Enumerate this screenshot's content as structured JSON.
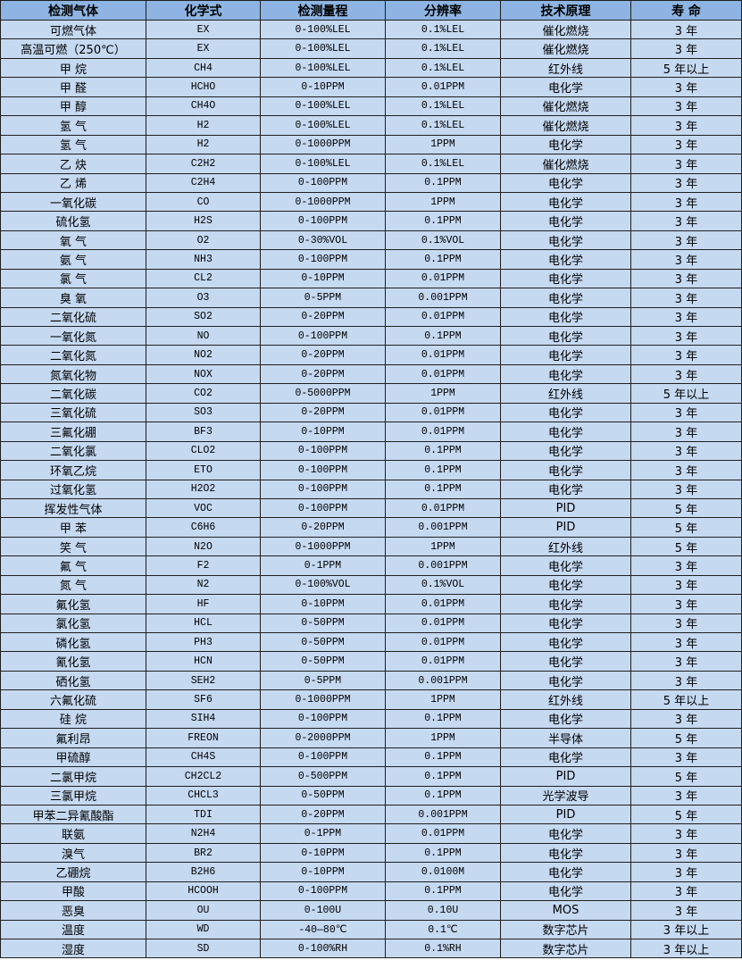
{
  "table": {
    "headers": [
      "检测气体",
      "化学式",
      "检测量程",
      "分辨率",
      "技术原理",
      "寿 命"
    ],
    "rows": [
      [
        "可燃气体",
        "EX",
        "0-100%LEL",
        "0.1%LEL",
        "催化燃烧",
        "3 年"
      ],
      [
        "高温可燃（250℃）",
        "EX",
        "0-100%LEL",
        "0.1%LEL",
        "催化燃烧",
        "3 年"
      ],
      [
        "甲 烷",
        "CH4",
        "0-100%LEL",
        "0.1%LEL",
        "红外线",
        "5 年以上"
      ],
      [
        "甲 醛",
        "HCHO",
        "0-10PPM",
        "0.01PPM",
        "电化学",
        "3 年"
      ],
      [
        "甲 醇",
        "CH4O",
        "0-100%LEL",
        "0.1%LEL",
        "催化燃烧",
        "3 年"
      ],
      [
        "氢 气",
        "H2",
        "0-100%LEL",
        "0.1%LEL",
        "催化燃烧",
        "3 年"
      ],
      [
        "氢 气",
        "H2",
        "0-1000PPM",
        "1PPM",
        "电化学",
        "3 年"
      ],
      [
        "乙 炔",
        "C2H2",
        "0-100%LEL",
        "0.1%LEL",
        "催化燃烧",
        "3 年"
      ],
      [
        "乙 烯",
        "C2H4",
        "0-100PPM",
        "0.1PPM",
        "电化学",
        "3 年"
      ],
      [
        "一氧化碳",
        "CO",
        "0-1000PPM",
        "1PPM",
        "电化学",
        "3 年"
      ],
      [
        "硫化氢",
        "H2S",
        "0-100PPM",
        "0.1PPM",
        "电化学",
        "3 年"
      ],
      [
        "氧 气",
        "O2",
        "0-30%VOL",
        "0.1%VOL",
        "电化学",
        "3 年"
      ],
      [
        "氨 气",
        "NH3",
        "0-100PPM",
        "0.1PPM",
        "电化学",
        "3 年"
      ],
      [
        "氯 气",
        "CL2",
        "0-10PPM",
        "0.01PPM",
        "电化学",
        "3 年"
      ],
      [
        "臭 氧",
        "O3",
        "0-5PPM",
        "0.001PPM",
        "电化学",
        "3 年"
      ],
      [
        "二氧化硫",
        "SO2",
        "0-20PPM",
        "0.01PPM",
        "电化学",
        "3 年"
      ],
      [
        "一氧化氮",
        "NO",
        "0-100PPM",
        "0.1PPM",
        "电化学",
        "3 年"
      ],
      [
        "二氧化氮",
        "NO2",
        "0-20PPM",
        "0.01PPM",
        "电化学",
        "3 年"
      ],
      [
        "氮氧化物",
        "NOX",
        "0-20PPM",
        "0.01PPM",
        "电化学",
        "3 年"
      ],
      [
        "二氧化碳",
        "CO2",
        "0-5000PPM",
        "1PPM",
        "红外线",
        "5 年以上"
      ],
      [
        "三氧化硫",
        "SO3",
        "0-20PPM",
        "0.01PPM",
        "电化学",
        "3 年"
      ],
      [
        "三氟化硼",
        "BF3",
        "0-10PPM",
        "0.01PPM",
        "电化学",
        "3 年"
      ],
      [
        "二氧化氯",
        "CLO2",
        "0-100PPM",
        "0.1PPM",
        "电化学",
        "3 年"
      ],
      [
        "环氧乙烷",
        "ETO",
        "0-100PPM",
        "0.1PPM",
        "电化学",
        "3 年"
      ],
      [
        "过氧化氢",
        "H2O2",
        "0-100PPM",
        "0.1PPM",
        "电化学",
        "3 年"
      ],
      [
        "挥发性气体",
        "VOC",
        "0-100PPM",
        "0.01PPM",
        "PID",
        "5 年"
      ],
      [
        "甲 苯",
        "C6H6",
        "0-20PPM",
        "0.001PPM",
        "PID",
        "5 年"
      ],
      [
        "笑 气",
        "N2O",
        "0-1000PPM",
        "1PPM",
        "红外线",
        "5 年"
      ],
      [
        "氟 气",
        "F2",
        "0-1PPM",
        "0.001PPM",
        "电化学",
        "3 年"
      ],
      [
        "氮 气",
        "N2",
        "0-100%VOL",
        "0.1%VOL",
        "电化学",
        "3 年"
      ],
      [
        "氟化氢",
        "HF",
        "0-10PPM",
        "0.01PPM",
        "电化学",
        "3 年"
      ],
      [
        "氯化氢",
        "HCL",
        "0-50PPM",
        "0.01PPM",
        "电化学",
        "3 年"
      ],
      [
        "磷化氢",
        "PH3",
        "0-50PPM",
        "0.01PPM",
        "电化学",
        "3 年"
      ],
      [
        "氰化氢",
        "HCN",
        "0-50PPM",
        "0.01PPM",
        "电化学",
        "3 年"
      ],
      [
        "硒化氢",
        "SEH2",
        "0-5PPM",
        "0.001PPM",
        "电化学",
        "3 年"
      ],
      [
        "六氟化硫",
        "SF6",
        "0-1000PPM",
        "1PPM",
        "红外线",
        "5 年以上"
      ],
      [
        "硅 烷",
        "SIH4",
        "0-100PPM",
        "0.1PPM",
        "电化学",
        "3 年"
      ],
      [
        "氟利昂",
        "FREON",
        "0-2000PPM",
        "1PPM",
        "半导体",
        "5 年"
      ],
      [
        "甲硫醇",
        "CH4S",
        "0-100PPM",
        "0.1PPM",
        "电化学",
        "3 年"
      ],
      [
        "二氯甲烷",
        "CH2CL2",
        "0-500PPM",
        "0.1PPM",
        "PID",
        "5 年"
      ],
      [
        "三氯甲烷",
        "CHCL3",
        "0-50PPM",
        "0.1PPM",
        "光学波导",
        "3 年"
      ],
      [
        "甲苯二异氰酸酯",
        "TDI",
        "0-20PPM",
        "0.001PPM",
        "PID",
        "5 年"
      ],
      [
        "联氨",
        "N2H4",
        "0-1PPM",
        "0.01PPM",
        "电化学",
        "3 年"
      ],
      [
        "溴气",
        "BR2",
        "0-10PPM",
        "0.1PPM",
        "电化学",
        "3 年"
      ],
      [
        "乙硼烷",
        "B2H6",
        "0-10PPM",
        "0.0100M",
        "电化学",
        "3 年"
      ],
      [
        "甲酸",
        "HCOOH",
        "0-100PPM",
        "0.1PPM",
        "电化学",
        "3 年"
      ],
      [
        "恶臭",
        "OU",
        "0-100U",
        "0.10U",
        "MOS",
        "3 年"
      ],
      [
        "温度",
        "WD",
        "-40—80℃",
        "0.1℃",
        "数字芯片",
        "3 年以上"
      ],
      [
        "湿度",
        "SD",
        "0-100%RH",
        "0.1%RH",
        "数字芯片",
        "3 年以上"
      ]
    ]
  },
  "colors": {
    "header_bg": "#8db4e2",
    "row_bg": "#c5d9f1",
    "border": "#1f1f1f"
  }
}
